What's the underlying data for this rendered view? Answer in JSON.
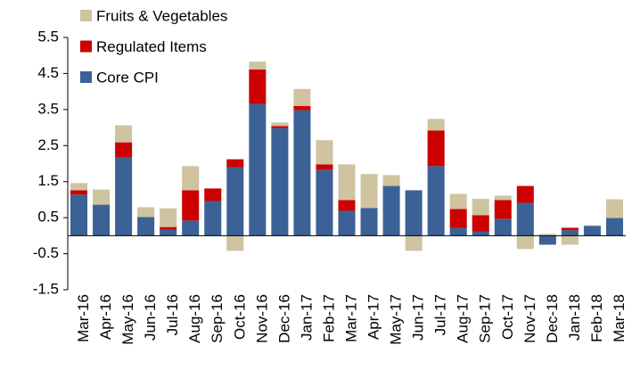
{
  "chart_data": {
    "type": "stacked_bar",
    "categories": [
      "Mar-16",
      "Apr-16",
      "May-16",
      "Jun-16",
      "Jul-16",
      "Aug-16",
      "Sep-16",
      "Oct-16",
      "Nov-16",
      "Dec-16",
      "Jan-17",
      "Feb-17",
      "Mar-17",
      "Apr-17",
      "May-17",
      "Jun-17",
      "Jul-17",
      "Aug-17",
      "Sep-17",
      "Oct-17",
      "Nov-17",
      "Dec-18",
      "Jan-18",
      "Feb-18",
      "Mar-18"
    ],
    "series": [
      {
        "name": "Core CPI",
        "color": "#3b6196",
        "values": [
          1.14,
          0.86,
          2.17,
          0.52,
          0.17,
          0.42,
          0.96,
          1.9,
          3.65,
          2.99,
          3.48,
          1.83,
          0.69,
          0.77,
          1.38,
          1.26,
          1.93,
          0.22,
          0.12,
          0.47,
          0.91,
          -0.25,
          0.15,
          0.27,
          0.49
        ]
      },
      {
        "name": "Regulated Items",
        "color": "#cc0000",
        "values": [
          0.12,
          0,
          0.42,
          0,
          0.07,
          0.84,
          0.35,
          0.22,
          0.96,
          0.05,
          0.12,
          0.15,
          0.3,
          0,
          0,
          0,
          0.99,
          0.52,
          0.45,
          0.52,
          0.47,
          0,
          0.07,
          0,
          0
        ]
      },
      {
        "name": "Fruits & Vegetables",
        "color": "#cfc3a0",
        "values": [
          0.2,
          0.42,
          0.47,
          0.27,
          0.52,
          0.67,
          0,
          -0.42,
          0.22,
          0.1,
          0.47,
          0.67,
          0.99,
          0.94,
          0.3,
          -0.42,
          0.32,
          0.42,
          0.45,
          0.12,
          -0.37,
          0.05,
          -0.25,
          0.02,
          0.52
        ]
      }
    ],
    "ylim": [
      -1.5,
      5.5
    ],
    "yticks": [
      -1.5,
      -0.5,
      0.5,
      1.5,
      2.5,
      3.5,
      4.5,
      5.5
    ],
    "legend": "upper left"
  }
}
